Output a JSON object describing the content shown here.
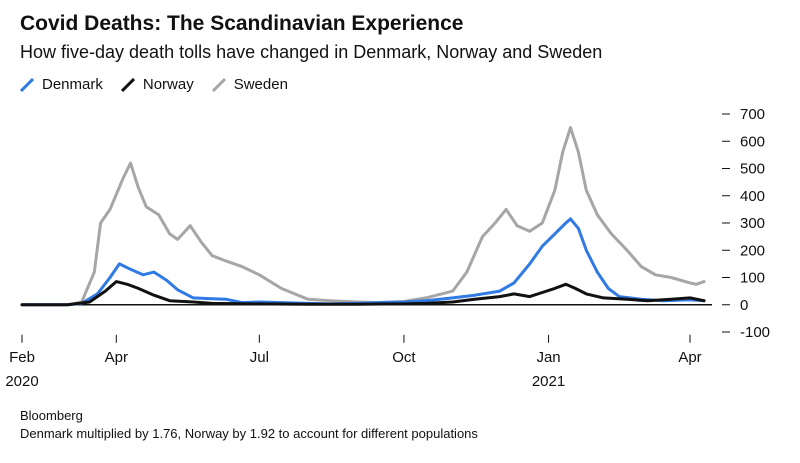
{
  "title": "Covid Deaths: The Scandinavian Experience",
  "subtitle": "How five-day death tolls have changed in Denmark, Norway and Sweden",
  "source": "Bloomberg",
  "note": "Denmark multiplied by 1.76, Norway by 1.92 to account for different populations",
  "chart_data": {
    "type": "line",
    "x_tick_labels": [
      "Feb",
      "Apr",
      "Jul",
      "Oct",
      "Jan",
      "Apr"
    ],
    "x_tick_dates": [
      "2020-02-01",
      "2020-04-01",
      "2020-07-01",
      "2020-10-01",
      "2021-01-01",
      "2021-04-01"
    ],
    "x_year_labels": [
      {
        "date": "2020-02-01",
        "label": "2020"
      },
      {
        "date": "2021-01-01",
        "label": "2021"
      }
    ],
    "xlim": [
      "2020-02-01",
      "2021-04-15"
    ],
    "ylim": [
      -100,
      700
    ],
    "y_ticks": [
      -100,
      0,
      100,
      200,
      300,
      400,
      500,
      600,
      700
    ],
    "y_axis_side": "right",
    "grid": false,
    "legend_position": "top-left",
    "series": [
      {
        "name": "Denmark",
        "color": "#2f7ae5",
        "points": [
          [
            "2020-02-01",
            0
          ],
          [
            "2020-03-01",
            0
          ],
          [
            "2020-03-10",
            5
          ],
          [
            "2020-03-20",
            40
          ],
          [
            "2020-03-28",
            100
          ],
          [
            "2020-04-03",
            150
          ],
          [
            "2020-04-10",
            130
          ],
          [
            "2020-04-18",
            110
          ],
          [
            "2020-04-25",
            120
          ],
          [
            "2020-05-03",
            90
          ],
          [
            "2020-05-10",
            55
          ],
          [
            "2020-05-20",
            25
          ],
          [
            "2020-06-01",
            22
          ],
          [
            "2020-06-10",
            20
          ],
          [
            "2020-06-20",
            8
          ],
          [
            "2020-07-01",
            10
          ],
          [
            "2020-07-15",
            8
          ],
          [
            "2020-08-01",
            5
          ],
          [
            "2020-08-15",
            3
          ],
          [
            "2020-09-01",
            5
          ],
          [
            "2020-09-15",
            8
          ],
          [
            "2020-10-01",
            10
          ],
          [
            "2020-10-15",
            15
          ],
          [
            "2020-11-01",
            25
          ],
          [
            "2020-11-15",
            35
          ],
          [
            "2020-12-01",
            50
          ],
          [
            "2020-12-10",
            80
          ],
          [
            "2020-12-20",
            150
          ],
          [
            "2020-12-28",
            215
          ],
          [
            "2021-01-05",
            260
          ],
          [
            "2021-01-12",
            300
          ],
          [
            "2021-01-15",
            315
          ],
          [
            "2021-01-20",
            280
          ],
          [
            "2021-01-25",
            200
          ],
          [
            "2021-02-01",
            120
          ],
          [
            "2021-02-08",
            60
          ],
          [
            "2021-02-15",
            30
          ],
          [
            "2021-03-01",
            20
          ],
          [
            "2021-03-15",
            15
          ],
          [
            "2021-04-01",
            18
          ],
          [
            "2021-04-10",
            15
          ]
        ]
      },
      {
        "name": "Norway",
        "color": "#111111",
        "points": [
          [
            "2020-02-01",
            0
          ],
          [
            "2020-03-01",
            0
          ],
          [
            "2020-03-15",
            10
          ],
          [
            "2020-03-25",
            50
          ],
          [
            "2020-04-01",
            85
          ],
          [
            "2020-04-08",
            75
          ],
          [
            "2020-04-15",
            60
          ],
          [
            "2020-04-25",
            35
          ],
          [
            "2020-05-05",
            15
          ],
          [
            "2020-05-20",
            10
          ],
          [
            "2020-06-01",
            5
          ],
          [
            "2020-07-01",
            3
          ],
          [
            "2020-08-01",
            2
          ],
          [
            "2020-09-01",
            2
          ],
          [
            "2020-10-01",
            3
          ],
          [
            "2020-10-15",
            5
          ],
          [
            "2020-11-01",
            10
          ],
          [
            "2020-11-15",
            20
          ],
          [
            "2020-12-01",
            30
          ],
          [
            "2020-12-10",
            40
          ],
          [
            "2020-12-20",
            30
          ],
          [
            "2020-12-28",
            45
          ],
          [
            "2021-01-05",
            60
          ],
          [
            "2021-01-12",
            75
          ],
          [
            "2021-01-18",
            60
          ],
          [
            "2021-01-25",
            40
          ],
          [
            "2021-02-05",
            25
          ],
          [
            "2021-02-20",
            20
          ],
          [
            "2021-03-05",
            15
          ],
          [
            "2021-03-20",
            20
          ],
          [
            "2021-04-01",
            25
          ],
          [
            "2021-04-10",
            15
          ]
        ]
      },
      {
        "name": "Sweden",
        "color": "#a6a6a6",
        "points": [
          [
            "2020-02-01",
            0
          ],
          [
            "2020-03-01",
            0
          ],
          [
            "2020-03-10",
            10
          ],
          [
            "2020-03-18",
            120
          ],
          [
            "2020-03-22",
            300
          ],
          [
            "2020-03-28",
            350
          ],
          [
            "2020-04-05",
            460
          ],
          [
            "2020-04-10",
            520
          ],
          [
            "2020-04-15",
            430
          ],
          [
            "2020-04-20",
            360
          ],
          [
            "2020-04-28",
            330
          ],
          [
            "2020-05-05",
            260
          ],
          [
            "2020-05-10",
            240
          ],
          [
            "2020-05-18",
            290
          ],
          [
            "2020-05-25",
            230
          ],
          [
            "2020-06-01",
            180
          ],
          [
            "2020-06-10",
            160
          ],
          [
            "2020-06-20",
            140
          ],
          [
            "2020-07-01",
            110
          ],
          [
            "2020-07-15",
            60
          ],
          [
            "2020-08-01",
            20
          ],
          [
            "2020-08-15",
            15
          ],
          [
            "2020-09-01",
            10
          ],
          [
            "2020-09-15",
            8
          ],
          [
            "2020-10-01",
            12
          ],
          [
            "2020-10-15",
            25
          ],
          [
            "2020-11-01",
            50
          ],
          [
            "2020-11-10",
            120
          ],
          [
            "2020-11-20",
            250
          ],
          [
            "2020-11-28",
            300
          ],
          [
            "2020-12-05",
            350
          ],
          [
            "2020-12-12",
            290
          ],
          [
            "2020-12-20",
            270
          ],
          [
            "2020-12-28",
            300
          ],
          [
            "2021-01-05",
            420
          ],
          [
            "2021-01-10",
            560
          ],
          [
            "2021-01-15",
            650
          ],
          [
            "2021-01-20",
            560
          ],
          [
            "2021-01-25",
            420
          ],
          [
            "2021-02-01",
            330
          ],
          [
            "2021-02-10",
            260
          ],
          [
            "2021-02-20",
            200
          ],
          [
            "2021-03-01",
            140
          ],
          [
            "2021-03-10",
            110
          ],
          [
            "2021-03-20",
            100
          ],
          [
            "2021-04-01",
            80
          ],
          [
            "2021-04-05",
            75
          ],
          [
            "2021-04-10",
            85
          ]
        ]
      }
    ]
  }
}
